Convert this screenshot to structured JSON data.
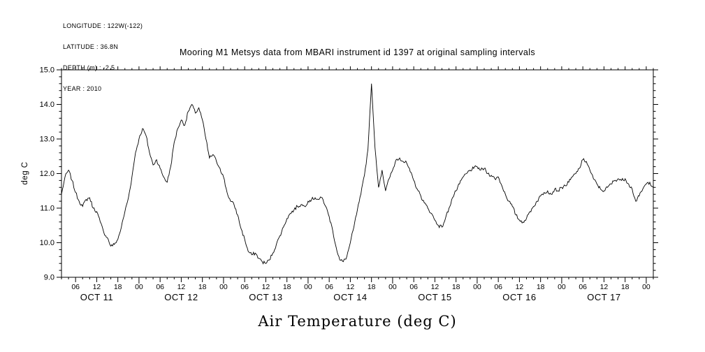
{
  "page": {
    "background": "#ffffff",
    "line_color": "#000000"
  },
  "metadata_block": {
    "lines": [
      "LONGITUDE : 122W(-122)",
      "LATITUDE : 36.8N",
      "DEPTH (m) : -2.5",
      "YEAR : 2010"
    ]
  },
  "title": "Mooring M1 Metsys data from MBARI instrument id 1397 at original sampling intervals",
  "x_axis_title": "Air Temperature (deg C)",
  "y_axis_label": "deg C",
  "chart_data": {
    "type": "line",
    "title": "Mooring M1 Metsys data from MBARI instrument id 1397 at original sampling intervals",
    "xlabel": "Air Temperature (deg C)",
    "ylabel": "deg C",
    "ylim": [
      9.0,
      15.0
    ],
    "y_major_tick_step": 1.0,
    "y_minor_tick_step": 0.2,
    "y_tick_labels": [
      "9.0",
      "10.0",
      "11.0",
      "12.0",
      "13.0",
      "14.0",
      "15.0"
    ],
    "xlim_hours": [
      2,
      170
    ],
    "x_major_tick_step_hours": 6,
    "x_minor_tick_step_hours": 2,
    "hour_tick_labels_cycle": [
      "06",
      "12",
      "18",
      "00"
    ],
    "day_labels": [
      "OCT 11",
      "OCT 12",
      "OCT 13",
      "OCT 14",
      "OCT 15",
      "OCT 16",
      "OCT 17"
    ],
    "year_shown": "2010",
    "grid": false,
    "legend": false,
    "line_color": "#000000",
    "noise_amplitude": 0.05,
    "noise_seed": 7,
    "substeps_per_hour": 4,
    "x_start_hour": 2,
    "x_step_hours": 1,
    "series": [
      {
        "name": "air_temperature_degC",
        "values": [
          11.4,
          11.9,
          12.1,
          11.8,
          11.45,
          11.2,
          11.05,
          11.25,
          11.3,
          11.0,
          10.9,
          10.6,
          10.3,
          10.15,
          9.9,
          9.95,
          10.1,
          10.45,
          10.9,
          11.3,
          11.9,
          12.6,
          13.0,
          13.3,
          13.1,
          12.6,
          12.25,
          12.4,
          12.15,
          11.9,
          11.75,
          12.2,
          12.9,
          13.3,
          13.55,
          13.4,
          13.8,
          14.0,
          13.75,
          13.9,
          13.55,
          13.0,
          12.45,
          12.55,
          12.35,
          12.15,
          11.9,
          11.45,
          11.2,
          11.1,
          10.8,
          10.4,
          10.1,
          9.75,
          9.65,
          9.7,
          9.55,
          9.45,
          9.4,
          9.5,
          9.7,
          9.95,
          10.2,
          10.45,
          10.7,
          10.85,
          10.95,
          11.05,
          11.1,
          11.05,
          11.2,
          11.25,
          11.3,
          11.25,
          11.3,
          11.05,
          10.75,
          10.35,
          9.85,
          9.5,
          9.45,
          9.6,
          10.0,
          10.45,
          10.95,
          11.4,
          11.95,
          12.7,
          14.6,
          12.75,
          11.6,
          12.1,
          11.5,
          11.85,
          12.1,
          12.4,
          12.45,
          12.35,
          12.3,
          12.05,
          11.8,
          11.55,
          11.35,
          11.15,
          11.0,
          10.85,
          10.65,
          10.5,
          10.45,
          10.7,
          11.0,
          11.3,
          11.5,
          11.7,
          11.9,
          12.0,
          12.1,
          12.15,
          12.2,
          12.1,
          12.15,
          12.0,
          11.95,
          11.85,
          11.9,
          11.65,
          11.4,
          11.2,
          11.05,
          10.8,
          10.65,
          10.6,
          10.7,
          10.9,
          11.05,
          11.2,
          11.35,
          11.45,
          11.5,
          11.4,
          11.55,
          11.5,
          11.6,
          11.65,
          11.75,
          11.9,
          12.0,
          12.15,
          12.4,
          12.35,
          12.1,
          11.85,
          11.7,
          11.55,
          11.5,
          11.6,
          11.7,
          11.8,
          11.85,
          11.8,
          11.85,
          11.7,
          11.55,
          11.2,
          11.35,
          11.55,
          11.7,
          11.75,
          11.6
        ]
      }
    ]
  }
}
